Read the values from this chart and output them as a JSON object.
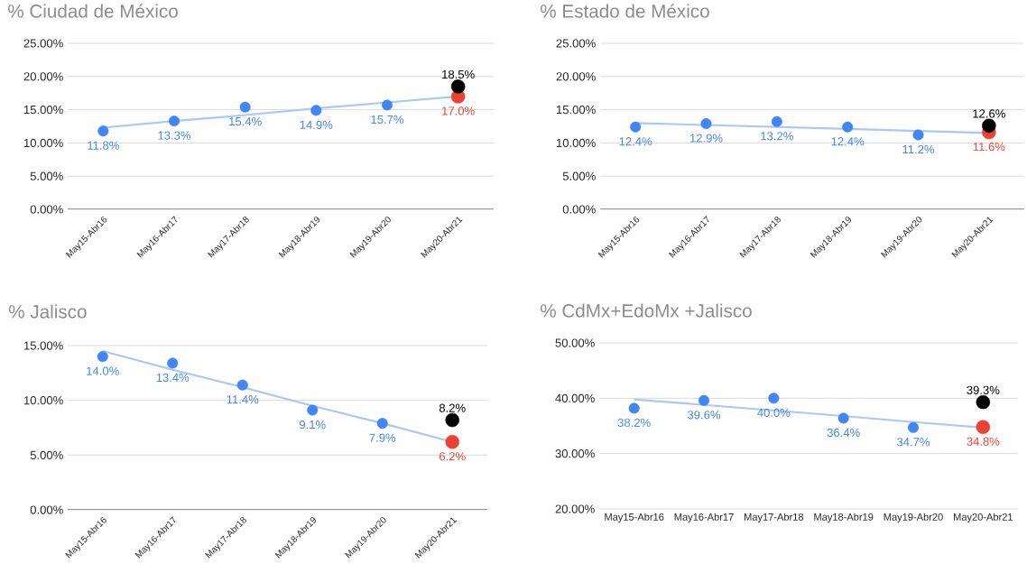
{
  "chart_data": [
    {
      "type": "scatter",
      "title": "% Ciudad de México",
      "marker": "circle",
      "grid": "y",
      "categories": [
        "May15-Abr16",
        "May16-Abr17",
        "May17-Abr18",
        "May18-Abr19",
        "May19-Abr20",
        "May20-Abr21"
      ],
      "ylim": [
        0,
        25
      ],
      "yticks": [
        {
          "value": 0,
          "label": "0.00%"
        },
        {
          "value": 5,
          "label": "5.00%"
        },
        {
          "value": 10,
          "label": "10.00%"
        },
        {
          "value": 15,
          "label": "15.00%"
        },
        {
          "value": 20,
          "label": "20.00%"
        },
        {
          "value": 25,
          "label": "25.00%"
        }
      ],
      "series": [
        {
          "type": "line",
          "marker": "none",
          "color": "#a8c7fa",
          "values": [
            12.3,
            13.3,
            14.2,
            15.2,
            16.1,
            17.0
          ]
        },
        {
          "color": "#4285f4",
          "values": [
            11.8,
            13.3,
            15.4,
            14.9,
            15.7,
            null
          ],
          "value_labels": [
            "11.8%",
            "13.3%",
            "15.4%",
            "14.9%",
            "15.7%",
            null
          ]
        },
        {
          "color": "#ea4335",
          "values": [
            null,
            null,
            null,
            null,
            null,
            17.0
          ],
          "value_labels": [
            null,
            null,
            null,
            null,
            null,
            "17.0%"
          ]
        },
        {
          "color": "#000000",
          "values": [
            null,
            null,
            null,
            null,
            null,
            18.5
          ],
          "value_labels": [
            null,
            null,
            null,
            null,
            null,
            "18.5%"
          ]
        }
      ]
    },
    {
      "type": "scatter",
      "title": "% Estado de México",
      "marker": "circle",
      "grid": "y",
      "categories": [
        "May15-Abr16",
        "May16-Abr17",
        "May17-Abr18",
        "May18-Abr19",
        "May19-Abr20",
        "May20-Abr21"
      ],
      "ylim": [
        0,
        25
      ],
      "yticks": [
        {
          "value": 0,
          "label": "0.00%"
        },
        {
          "value": 5,
          "label": "5.00%"
        },
        {
          "value": 10,
          "label": "10.00%"
        },
        {
          "value": 15,
          "label": "15.00%"
        },
        {
          "value": 20,
          "label": "20.00%"
        },
        {
          "value": 25,
          "label": "25.00%"
        }
      ],
      "series": [
        {
          "type": "line",
          "marker": "none",
          "color": "#a8c7fa",
          "values": [
            13.0,
            12.7,
            12.4,
            12.1,
            11.8,
            11.5
          ]
        },
        {
          "color": "#4285f4",
          "values": [
            12.4,
            12.9,
            13.2,
            12.4,
            11.2,
            null
          ],
          "value_labels": [
            "12.4%",
            "12.9%",
            "13.2%",
            "12.4%",
            "11.2%",
            null
          ]
        },
        {
          "color": "#ea4335",
          "values": [
            null,
            null,
            null,
            null,
            null,
            11.6
          ],
          "value_labels": [
            null,
            null,
            null,
            null,
            null,
            "11.6%"
          ]
        },
        {
          "color": "#000000",
          "values": [
            null,
            null,
            null,
            null,
            null,
            12.6
          ],
          "value_labels": [
            null,
            null,
            null,
            null,
            null,
            "12.6%"
          ]
        }
      ]
    },
    {
      "type": "scatter",
      "title": "% Jalisco",
      "marker": "circle",
      "grid": "y",
      "categories": [
        "May15-Abr16",
        "May16-Abr17",
        "May17-Abr18",
        "May18-Abr19",
        "May19-Abr20",
        "May20-Abr21"
      ],
      "ylim": [
        0,
        15
      ],
      "yticks": [
        {
          "value": 0,
          "label": "0.00%"
        },
        {
          "value": 5,
          "label": "5.00%"
        },
        {
          "value": 10,
          "label": "10.00%"
        },
        {
          "value": 15,
          "label": "15.00%"
        }
      ],
      "series": [
        {
          "type": "line",
          "marker": "none",
          "color": "#a8c7fa",
          "values": [
            14.5,
            12.8,
            11.2,
            9.5,
            7.9,
            6.2
          ]
        },
        {
          "color": "#4285f4",
          "values": [
            14.0,
            13.4,
            11.4,
            9.1,
            7.9,
            null
          ],
          "value_labels": [
            "14.0%",
            "13.4%",
            "11.4%",
            "9.1%",
            "7.9%",
            null
          ]
        },
        {
          "color": "#ea4335",
          "values": [
            null,
            null,
            null,
            null,
            null,
            6.2
          ],
          "value_labels": [
            null,
            null,
            null,
            null,
            null,
            "6.2%"
          ]
        },
        {
          "color": "#000000",
          "values": [
            null,
            null,
            null,
            null,
            null,
            8.2
          ],
          "value_labels": [
            null,
            null,
            null,
            null,
            null,
            "8.2%"
          ]
        }
      ]
    },
    {
      "type": "scatter",
      "title": "% CdMx+EdoMx +Jalisco",
      "marker": "circle",
      "grid": "y",
      "categories": [
        "May15-Abr16",
        "May16-Abr17",
        "May17-Abr18",
        "May18-Abr19",
        "May19-Abr20",
        "May20-Abr21"
      ],
      "ylim": [
        20,
        50
      ],
      "yticks": [
        {
          "value": 20,
          "label": "20.00%"
        },
        {
          "value": 30,
          "label": "30.00%"
        },
        {
          "value": 40,
          "label": "40.00%"
        },
        {
          "value": 50,
          "label": "50.00%"
        }
      ],
      "series": [
        {
          "type": "line",
          "marker": "none",
          "color": "#a8c7fa",
          "values": [
            39.8,
            38.8,
            37.8,
            36.8,
            35.7,
            34.7
          ]
        },
        {
          "color": "#4285f4",
          "values": [
            38.2,
            39.6,
            40.0,
            36.4,
            34.7,
            null
          ],
          "value_labels": [
            "38.2%",
            "39.6%",
            "40.0%",
            "36.4%",
            "34.7%",
            null
          ]
        },
        {
          "color": "#ea4335",
          "values": [
            null,
            null,
            null,
            null,
            null,
            34.8
          ],
          "value_labels": [
            null,
            null,
            null,
            null,
            null,
            "34.8%"
          ]
        },
        {
          "color": "#000000",
          "values": [
            null,
            null,
            null,
            null,
            null,
            39.3
          ],
          "value_labels": [
            null,
            null,
            null,
            null,
            null,
            "39.3%"
          ]
        }
      ]
    }
  ]
}
